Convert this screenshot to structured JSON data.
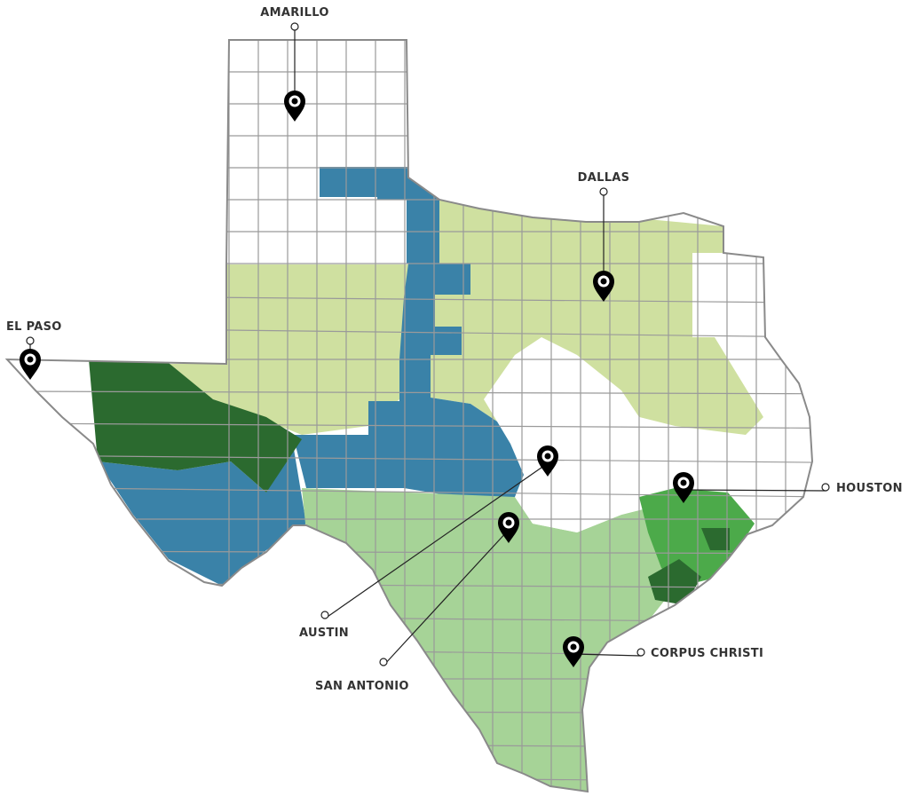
{
  "map": {
    "colors": {
      "outline": "#8a8a8a",
      "unshaded": "#ffffff",
      "yellow_green": "#cfe0a0",
      "blue": "#3a82a8",
      "dark_green": "#2b6a2f",
      "light_green": "#a6d397",
      "medium_green": "#4caa4a",
      "pin": "#000000"
    },
    "cities": [
      {
        "name": "AMARILLO",
        "icon": "map-pin-icon"
      },
      {
        "name": "DALLAS",
        "icon": "map-pin-icon"
      },
      {
        "name": "EL PASO",
        "icon": "map-pin-icon"
      },
      {
        "name": "AUSTIN",
        "icon": "map-pin-icon"
      },
      {
        "name": "SAN ANTONIO",
        "icon": "map-pin-icon"
      },
      {
        "name": "HOUSTON",
        "icon": "map-pin-icon"
      },
      {
        "name": "CORPUS CHRISTI",
        "icon": "map-pin-icon"
      }
    ]
  }
}
